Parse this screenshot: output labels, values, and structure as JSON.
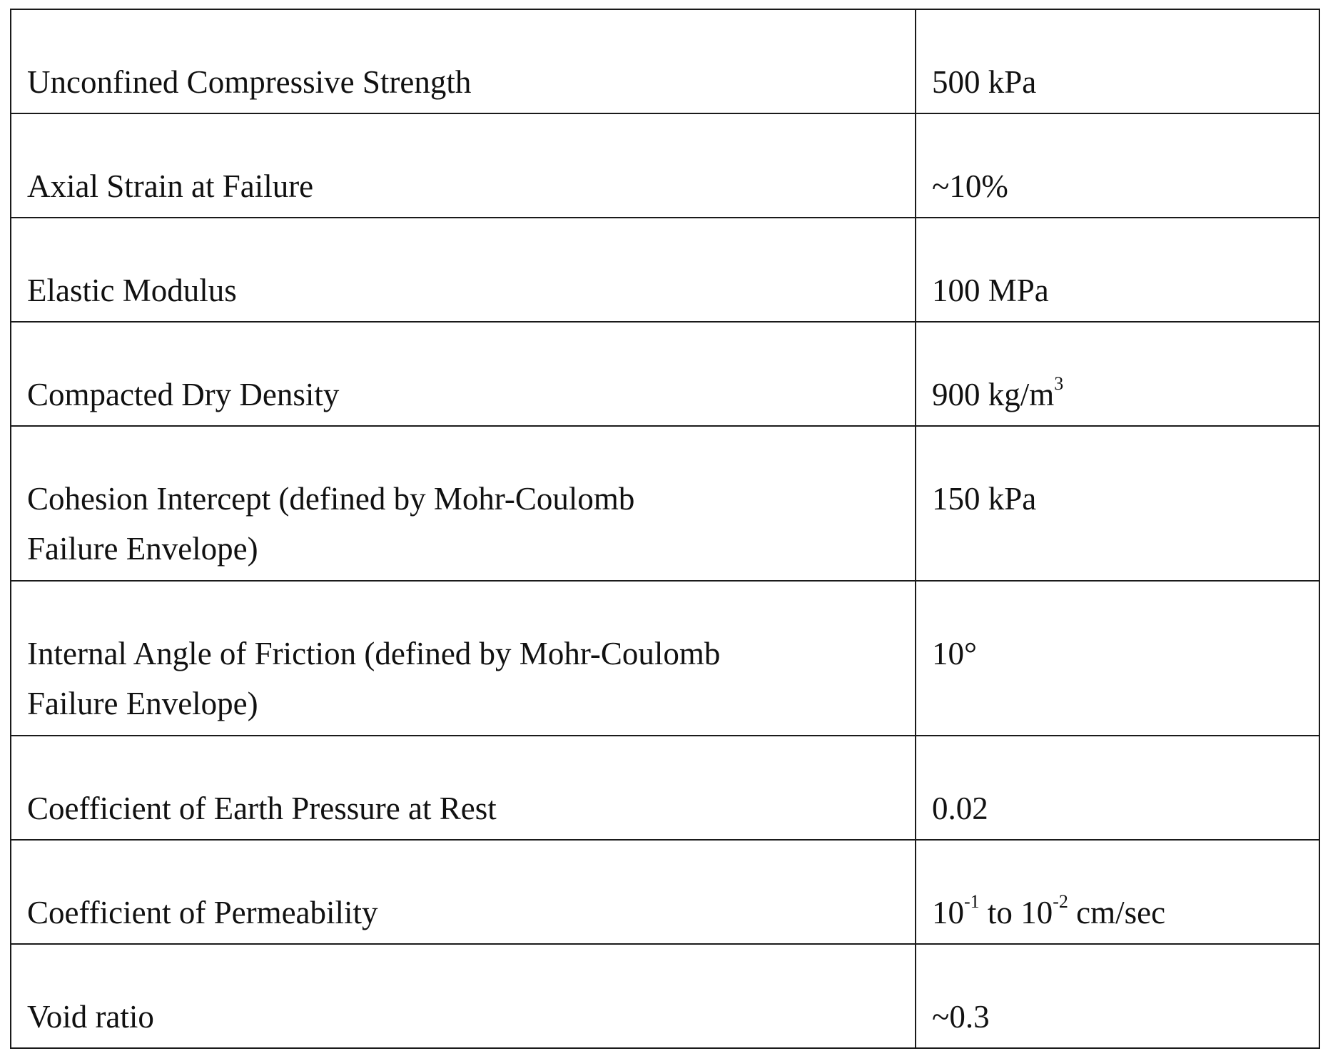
{
  "table": {
    "rows": [
      {
        "property": "Unconfined Compressive Strength",
        "value": "500 kPa"
      },
      {
        "property": "Axial Strain at Failure",
        "value": "~10%"
      },
      {
        "property": "Elastic Modulus",
        "value": "100 MPa"
      },
      {
        "property": "Compacted Dry Density",
        "value_text": "900 kg/m",
        "value_sup": "3"
      },
      {
        "property_line1": "Cohesion Intercept (defined by Mohr-Coulomb",
        "property_line2": "Failure Envelope)",
        "value": "150 kPa"
      },
      {
        "property_line1": "Internal Angle of Friction (defined by Mohr-Coulomb",
        "property_line2": "Failure Envelope)",
        "value": "10°"
      },
      {
        "property": "Coefficient of Earth Pressure at Rest",
        "value": "0.02"
      },
      {
        "property": "Coefficient of Permeability",
        "value_base1": "10",
        "value_exp1": "-1",
        "value_mid": " to ",
        "value_base2": "10",
        "value_exp2": "-2",
        "value_unit": " cm/sec"
      },
      {
        "property": "Void ratio",
        "value": "~0.3"
      }
    ]
  }
}
